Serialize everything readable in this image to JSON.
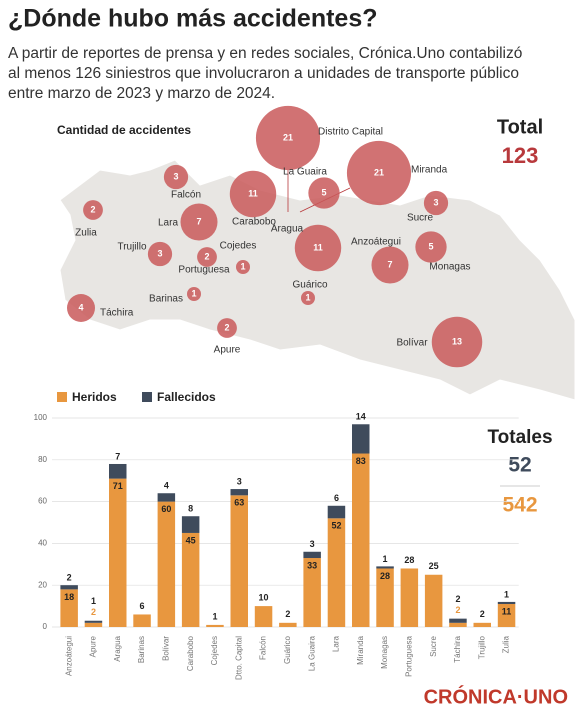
{
  "header": {
    "title": "¿Dónde hubo más accidentes?",
    "subtitle": [
      "A partir de reportes de prensa y en redes sociales, Crónica.Uno contabilizó",
      "al menos 126 siniestros que involucraron a unidades de transporte público",
      "entre marzo de 2023 y marzo de 2024."
    ]
  },
  "chart_data": [
    {
      "type": "bubble",
      "title": "Cantidad de accidentes",
      "total_label": "Total",
      "total": 123,
      "color": "#c9595b",
      "categories": [
        "Distrito Capital",
        "Miranda",
        "La Guaira",
        "Carabobo",
        "Aragua",
        "Falcón",
        "Lara",
        "Zulia",
        "Trujillo",
        "Portuguesa",
        "Cojedes",
        "Barinas",
        "Táchira",
        "Apure",
        "Guárico",
        "Anzoátegui",
        "Monagas",
        "Sucre",
        "Bolívar"
      ],
      "values": [
        21,
        21,
        5,
        11,
        11,
        3,
        7,
        2,
        3,
        2,
        1,
        1,
        4,
        2,
        1,
        7,
        5,
        3,
        13
      ]
    },
    {
      "type": "bar",
      "stacked": true,
      "totals_label": "Totales",
      "categories": [
        "Anzoátegui",
        "Apure",
        "Aragua",
        "Barinas",
        "Bolívar",
        "Carabobo",
        "Cojedes",
        "Dtto. Capital",
        "Falcón",
        "Guárico",
        "La Guaira",
        "Lara",
        "Miranda",
        "Monagas",
        "Portuguesa",
        "Sucre",
        "Táchira",
        "Trujillo",
        "Zulia"
      ],
      "series": [
        {
          "name": "Heridos",
          "color": "#e8973f",
          "total": 542,
          "values": [
            18,
            2,
            71,
            6,
            60,
            45,
            1,
            63,
            10,
            2,
            33,
            52,
            83,
            28,
            28,
            25,
            2,
            2,
            11
          ]
        },
        {
          "name": "Fallecidos",
          "color": "#3f4b5c",
          "total": 52,
          "values": [
            2,
            1,
            7,
            null,
            4,
            8,
            null,
            3,
            null,
            null,
            3,
            6,
            14,
            1,
            null,
            null,
            2,
            null,
            1
          ]
        }
      ],
      "ylim": [
        0,
        100
      ],
      "yticks": [
        0,
        20,
        40,
        60,
        80,
        100
      ],
      "grid": true
    },
    {
      "type": "logo",
      "text": "CRÓNICA·UNO"
    }
  ]
}
